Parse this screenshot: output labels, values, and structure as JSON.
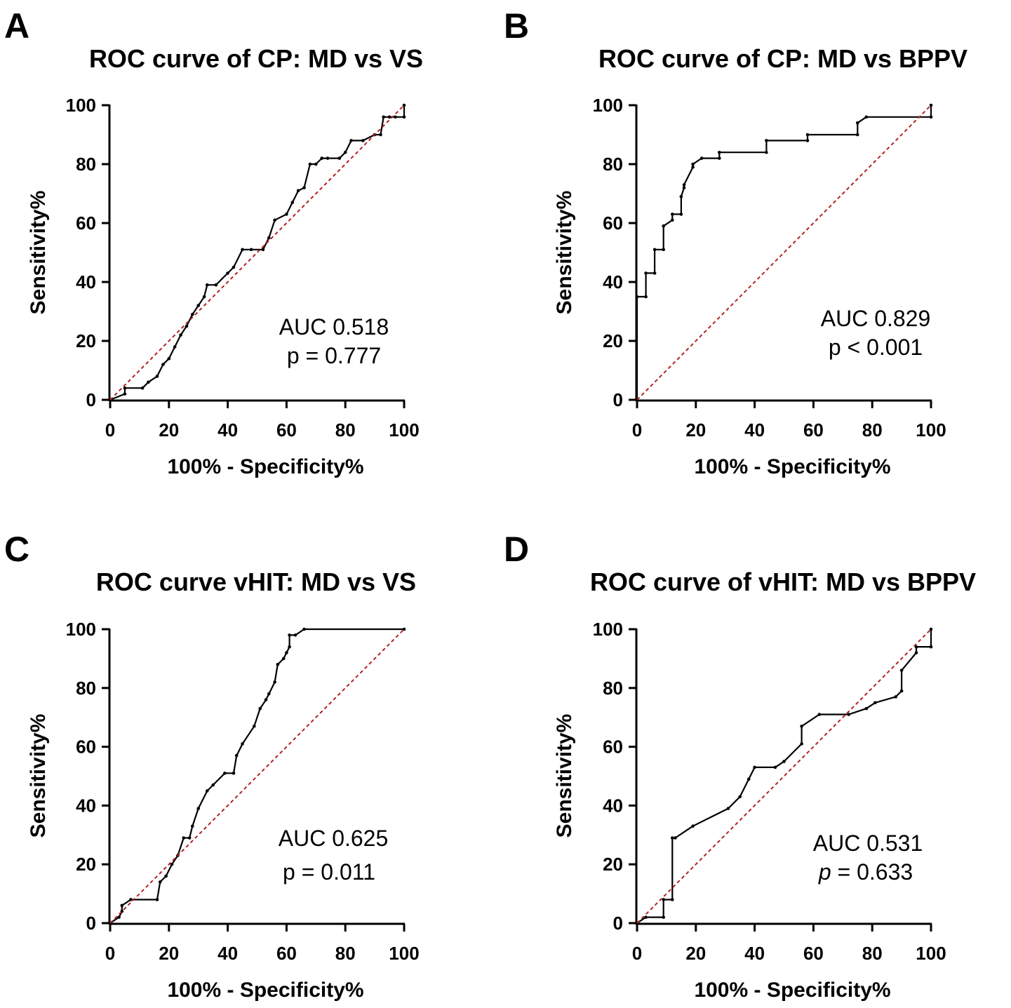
{
  "chart_data": [
    {
      "type": "line",
      "panel": "A",
      "title": "ROC curve of CP: MD vs VS",
      "xlabel": "100% - Specificity%",
      "ylabel": "Sensitivity%",
      "xlim": [
        0,
        100
      ],
      "ylim": [
        0,
        100
      ],
      "xticks": [
        "0",
        "20",
        "40",
        "60",
        "80",
        "100"
      ],
      "yticks": [
        "0",
        "20",
        "40",
        "60",
        "80",
        "100"
      ],
      "auc_label": "AUC 0.518",
      "p_label": "p = 0.777",
      "p_italic": false,
      "series": [
        {
          "name": "ROC",
          "x": [
            0,
            5,
            5,
            11,
            13,
            16,
            18,
            20,
            22,
            24,
            26,
            28,
            30,
            32,
            33,
            36,
            40,
            42,
            45,
            48,
            52,
            54,
            56,
            60,
            62,
            64,
            66,
            68,
            70,
            72,
            74,
            78,
            80,
            82,
            86,
            90,
            92,
            93,
            95,
            97,
            100,
            100
          ],
          "y": [
            0,
            2,
            4,
            4,
            6,
            8,
            12,
            14,
            18,
            22,
            25,
            29,
            32,
            35,
            39,
            39,
            43,
            45,
            51,
            51,
            51,
            55,
            61,
            63,
            67,
            71,
            72,
            80,
            80,
            82,
            82,
            82,
            84,
            88,
            88,
            90,
            90,
            96,
            96,
            96,
            96,
            100
          ]
        },
        {
          "name": "Reference",
          "x": [
            0,
            100
          ],
          "y": [
            0,
            100
          ]
        }
      ]
    },
    {
      "type": "line",
      "panel": "B",
      "title": "ROC curve of  CP: MD vs BPPV",
      "xlabel": "100% - Specificity%",
      "ylabel": "Sensitivity%",
      "xlim": [
        0,
        100
      ],
      "ylim": [
        0,
        100
      ],
      "xticks": [
        "0",
        "20",
        "40",
        "60",
        "80",
        "100"
      ],
      "yticks": [
        "0",
        "20",
        "40",
        "60",
        "80",
        "100"
      ],
      "auc_label": "AUC 0.829",
      "p_label": "p < 0.001",
      "p_italic": false,
      "series": [
        {
          "name": "ROC",
          "x": [
            0,
            0,
            3,
            3,
            6,
            6,
            9,
            9,
            12,
            12,
            15,
            15,
            16,
            16,
            19,
            19,
            22,
            28,
            28,
            44,
            44,
            58,
            58,
            75,
            75,
            78,
            100,
            100
          ],
          "y": [
            0,
            35,
            35,
            43,
            43,
            51,
            51,
            59,
            61,
            63,
            63,
            69,
            72,
            73,
            79,
            80,
            82,
            82,
            84,
            84,
            88,
            88,
            90,
            90,
            94,
            96,
            96,
            100
          ]
        },
        {
          "name": "Reference",
          "x": [
            0,
            100
          ],
          "y": [
            0,
            100
          ]
        }
      ]
    },
    {
      "type": "line",
      "panel": "C",
      "title": "ROC curve vHIT: MD vs  VS",
      "xlabel": "100% - Specificity%",
      "ylabel": "Sensitivity%",
      "xlim": [
        0,
        100
      ],
      "ylim": [
        0,
        100
      ],
      "xticks": [
        "0",
        "20",
        "40",
        "60",
        "80",
        "100"
      ],
      "yticks": [
        "0",
        "20",
        "40",
        "60",
        "80",
        "100"
      ],
      "auc_label": "AUC 0.625",
      "p_label": "p = 0.011",
      "p_italic": false,
      "series": [
        {
          "name": "ROC",
          "x": [
            0,
            3,
            4,
            4,
            7,
            16,
            17,
            19,
            21,
            23,
            25,
            27,
            28,
            30,
            33,
            35,
            39,
            42,
            43,
            45,
            49,
            51,
            53,
            54,
            56,
            57,
            59,
            60,
            61,
            61,
            63,
            66,
            100
          ],
          "y": [
            0,
            2,
            4,
            6,
            8,
            8,
            14,
            16,
            20,
            23,
            29,
            29,
            33,
            39,
            45,
            47,
            51,
            51,
            57,
            61,
            67,
            73,
            76,
            78,
            82,
            88,
            90,
            92,
            94,
            98,
            98,
            100,
            100
          ]
        },
        {
          "name": "Reference",
          "x": [
            0,
            100
          ],
          "y": [
            0,
            100
          ]
        }
      ]
    },
    {
      "type": "line",
      "panel": "D",
      "title": "ROC curve of vHIT: MD vs  BPPV",
      "xlabel": "100% - Specificity%",
      "ylabel": "Sensitivity%",
      "xlim": [
        0,
        100
      ],
      "ylim": [
        0,
        100
      ],
      "xticks": [
        "0",
        "20",
        "40",
        "60",
        "80",
        "100"
      ],
      "yticks": [
        "0",
        "20",
        "40",
        "60",
        "80",
        "100"
      ],
      "auc_label": "AUC 0.531",
      "p_prefix": "p",
      "p_suffix": " = 0.633",
      "p_italic": true,
      "series": [
        {
          "name": "ROC",
          "x": [
            0,
            3,
            9,
            9,
            12,
            12,
            13,
            19,
            31,
            35,
            38,
            40,
            47,
            50,
            56,
            56,
            62,
            72,
            78,
            81,
            88,
            90,
            90,
            95,
            95,
            100,
            100
          ],
          "y": [
            0,
            2,
            2,
            8,
            8,
            29,
            29,
            33,
            39,
            43,
            49,
            53,
            53,
            55,
            61,
            67,
            71,
            71,
            73,
            75,
            77,
            79,
            86,
            92,
            94,
            94,
            100
          ]
        },
        {
          "name": "Reference",
          "x": [
            0,
            100
          ],
          "y": [
            0,
            100
          ]
        }
      ]
    }
  ]
}
